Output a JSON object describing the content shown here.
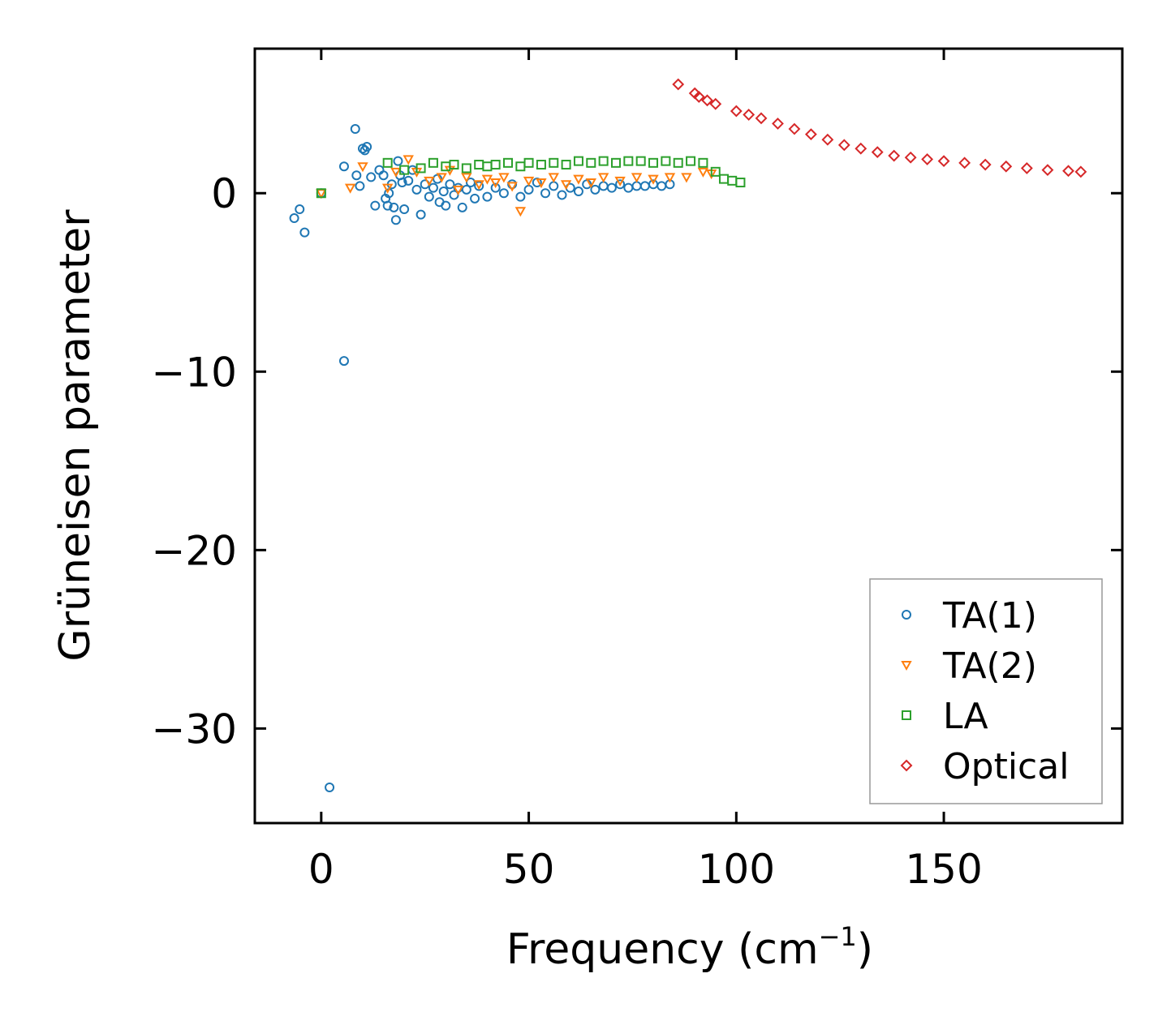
{
  "chart_data": {
    "type": "scatter",
    "title": "",
    "xlabel": "Frequency (cm",
    "xlabel_sup": "−1",
    "xlabel_end": ")",
    "ylabel": "Grüneisen parameter",
    "xlim": [
      -16,
      193
    ],
    "ylim": [
      -35.3,
      8.1
    ],
    "xticks": [
      0,
      50,
      100,
      150
    ],
    "xtick_labels": [
      "0",
      "50",
      "100",
      "150"
    ],
    "yticks": [
      0,
      -10,
      -20,
      -30
    ],
    "ytick_labels": [
      "0",
      "−10",
      "−20",
      "−30"
    ],
    "grid": false,
    "legend_location": "lower-right",
    "series": [
      {
        "name": "TA(1)",
        "marker": "circle",
        "color": "#1f77b4",
        "points": [
          [
            -6.5,
            -1.4
          ],
          [
            -5.2,
            -0.9
          ],
          [
            -4.0,
            -2.2
          ],
          [
            0.0,
            0.0
          ],
          [
            2.0,
            -33.3
          ],
          [
            5.5,
            1.5
          ],
          [
            5.5,
            -9.4
          ],
          [
            8.2,
            3.6
          ],
          [
            8.5,
            1.0
          ],
          [
            9.3,
            0.4
          ],
          [
            10.0,
            2.5
          ],
          [
            10.5,
            2.4
          ],
          [
            11.0,
            2.6
          ],
          [
            12.0,
            0.9
          ],
          [
            13.0,
            -0.7
          ],
          [
            14.0,
            1.3
          ],
          [
            15.0,
            1.0
          ],
          [
            15.5,
            -0.3
          ],
          [
            16.0,
            -0.7
          ],
          [
            16.3,
            0.0
          ],
          [
            17.0,
            0.5
          ],
          [
            17.5,
            -0.8
          ],
          [
            18.0,
            -1.5
          ],
          [
            18.5,
            1.8
          ],
          [
            19.0,
            1.0
          ],
          [
            19.5,
            0.6
          ],
          [
            20.0,
            -0.9
          ],
          [
            21.0,
            0.7
          ],
          [
            22.0,
            1.3
          ],
          [
            23.0,
            0.2
          ],
          [
            24.0,
            -1.2
          ],
          [
            25.0,
            0.5
          ],
          [
            26.0,
            -0.2
          ],
          [
            27.0,
            0.3
          ],
          [
            28.0,
            0.8
          ],
          [
            28.5,
            -0.5
          ],
          [
            29.5,
            0.1
          ],
          [
            30.0,
            -0.7
          ],
          [
            31.0,
            0.5
          ],
          [
            32.0,
            -0.1
          ],
          [
            33.0,
            0.3
          ],
          [
            34.0,
            -0.8
          ],
          [
            35.0,
            0.2
          ],
          [
            36.0,
            0.6
          ],
          [
            37.0,
            -0.3
          ],
          [
            38.0,
            0.4
          ],
          [
            40.0,
            -0.2
          ],
          [
            42.0,
            0.3
          ],
          [
            44.0,
            0.0
          ],
          [
            46.0,
            0.5
          ],
          [
            48.0,
            -0.2
          ],
          [
            50.0,
            0.2
          ],
          [
            52.0,
            0.6
          ],
          [
            54.0,
            0.0
          ],
          [
            56.0,
            0.4
          ],
          [
            58.0,
            -0.1
          ],
          [
            60.0,
            0.3
          ],
          [
            62.0,
            0.1
          ],
          [
            64.0,
            0.5
          ],
          [
            66.0,
            0.2
          ],
          [
            68.0,
            0.4
          ],
          [
            70.0,
            0.3
          ],
          [
            72.0,
            0.5
          ],
          [
            74.0,
            0.3
          ],
          [
            76.0,
            0.4
          ],
          [
            78.0,
            0.4
          ],
          [
            80.0,
            0.5
          ],
          [
            82.0,
            0.4
          ],
          [
            84.0,
            0.5
          ]
        ]
      },
      {
        "name": "TA(2)",
        "marker": "triangle-down",
        "color": "#ff7f0e",
        "points": [
          [
            0.0,
            0.0
          ],
          [
            7.0,
            0.3
          ],
          [
            10.0,
            1.5
          ],
          [
            16.0,
            0.3
          ],
          [
            18.0,
            1.2
          ],
          [
            21.0,
            1.9
          ],
          [
            23.0,
            1.2
          ],
          [
            26.0,
            0.7
          ],
          [
            29.0,
            0.9
          ],
          [
            31.0,
            1.3
          ],
          [
            33.0,
            0.2
          ],
          [
            35.0,
            0.9
          ],
          [
            38.0,
            0.5
          ],
          [
            40.0,
            0.8
          ],
          [
            42.0,
            0.6
          ],
          [
            44.0,
            0.9
          ],
          [
            46.0,
            0.4
          ],
          [
            48.0,
            -1.0
          ],
          [
            50.0,
            0.7
          ],
          [
            53.0,
            0.6
          ],
          [
            56.0,
            0.9
          ],
          [
            59.0,
            0.5
          ],
          [
            62.0,
            0.8
          ],
          [
            65.0,
            0.6
          ],
          [
            68.0,
            0.9
          ],
          [
            72.0,
            0.7
          ],
          [
            76.0,
            0.9
          ],
          [
            80.0,
            0.8
          ],
          [
            84.0,
            0.9
          ],
          [
            88.0,
            0.9
          ],
          [
            92.0,
            1.2
          ],
          [
            94.0,
            1.1
          ]
        ]
      },
      {
        "name": "LA",
        "marker": "square",
        "color": "#2ca02c",
        "points": [
          [
            0.0,
            0.0
          ],
          [
            16.0,
            1.7
          ],
          [
            20.0,
            1.3
          ],
          [
            24.0,
            1.4
          ],
          [
            27.0,
            1.7
          ],
          [
            30.0,
            1.5
          ],
          [
            32.0,
            1.6
          ],
          [
            35.0,
            1.4
          ],
          [
            38.0,
            1.6
          ],
          [
            40.0,
            1.5
          ],
          [
            42.0,
            1.6
          ],
          [
            45.0,
            1.7
          ],
          [
            48.0,
            1.5
          ],
          [
            50.0,
            1.7
          ],
          [
            53.0,
            1.6
          ],
          [
            56.0,
            1.7
          ],
          [
            59.0,
            1.6
          ],
          [
            62.0,
            1.8
          ],
          [
            65.0,
            1.7
          ],
          [
            68.0,
            1.8
          ],
          [
            71.0,
            1.7
          ],
          [
            74.0,
            1.8
          ],
          [
            77.0,
            1.8
          ],
          [
            80.0,
            1.7
          ],
          [
            83.0,
            1.8
          ],
          [
            86.0,
            1.7
          ],
          [
            89.0,
            1.8
          ],
          [
            92.0,
            1.7
          ],
          [
            95.0,
            1.2
          ],
          [
            97.0,
            0.8
          ],
          [
            99.0,
            0.7
          ],
          [
            101.0,
            0.6
          ]
        ]
      },
      {
        "name": "Optical",
        "marker": "diamond",
        "color": "#d62728",
        "points": [
          [
            86.0,
            6.1
          ],
          [
            90.0,
            5.6
          ],
          [
            91.0,
            5.4
          ],
          [
            93.0,
            5.2
          ],
          [
            95.0,
            5.0
          ],
          [
            100.0,
            4.6
          ],
          [
            103.0,
            4.4
          ],
          [
            106.0,
            4.2
          ],
          [
            110.0,
            3.9
          ],
          [
            114.0,
            3.6
          ],
          [
            118.0,
            3.3
          ],
          [
            122.0,
            3.0
          ],
          [
            126.0,
            2.7
          ],
          [
            130.0,
            2.5
          ],
          [
            134.0,
            2.3
          ],
          [
            138.0,
            2.1
          ],
          [
            142.0,
            2.0
          ],
          [
            146.0,
            1.9
          ],
          [
            150.0,
            1.8
          ],
          [
            155.0,
            1.7
          ],
          [
            160.0,
            1.6
          ],
          [
            165.0,
            1.5
          ],
          [
            170.0,
            1.4
          ],
          [
            175.0,
            1.3
          ],
          [
            180.0,
            1.25
          ],
          [
            183.0,
            1.2
          ]
        ]
      }
    ]
  }
}
